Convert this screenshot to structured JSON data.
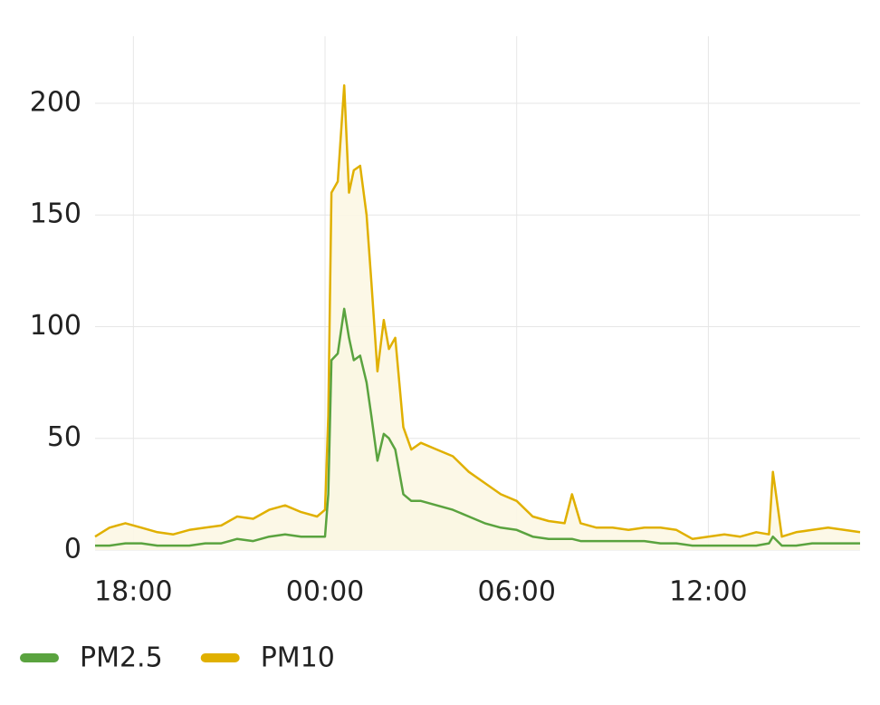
{
  "chart_data": {
    "type": "line",
    "x": [
      16.8,
      17.25,
      17.75,
      18.25,
      18.75,
      19.25,
      19.75,
      20.25,
      20.75,
      21.25,
      21.75,
      22.25,
      22.75,
      23.25,
      23.75,
      24.0,
      24.1,
      24.2,
      24.4,
      24.6,
      24.75,
      24.9,
      25.1,
      25.3,
      25.45,
      25.64,
      25.84,
      26.0,
      26.2,
      26.45,
      26.7,
      27.0,
      27.5,
      28.0,
      28.5,
      29.0,
      29.5,
      30.0,
      30.5,
      31.0,
      31.5,
      31.73,
      32.0,
      32.5,
      33.0,
      33.5,
      34.0,
      34.5,
      35.0,
      35.5,
      36.0,
      36.5,
      37.0,
      37.5,
      37.9,
      38.02,
      38.3,
      38.75,
      39.25,
      39.75,
      40.25,
      40.75
    ],
    "xlim": [
      16.8,
      40.75
    ],
    "xticks": [
      {
        "value": 18,
        "label": "18:00"
      },
      {
        "value": 24,
        "label": "00:00"
      },
      {
        "value": 30,
        "label": "06:00"
      },
      {
        "value": 36,
        "label": "12:00"
      }
    ],
    "ylim": [
      0,
      230
    ],
    "yticks": [
      0,
      50,
      100,
      150,
      200
    ],
    "grid": true,
    "legend": "bottom-left",
    "series": [
      {
        "name": "PM2.5",
        "color": "#5aa33f",
        "fill": "#ebf0d8",
        "values": [
          2,
          2,
          3,
          3,
          2,
          2,
          2,
          3,
          3,
          5,
          4,
          6,
          7,
          6,
          6,
          6,
          25,
          85,
          88,
          108,
          95,
          85,
          87,
          75,
          60,
          40,
          52,
          50,
          45,
          25,
          22,
          22,
          20,
          18,
          15,
          12,
          10,
          9,
          6,
          5,
          5,
          5,
          4,
          4,
          4,
          4,
          4,
          3,
          3,
          2,
          2,
          2,
          2,
          2,
          3,
          6,
          2,
          2,
          3,
          3,
          3,
          3
        ]
      },
      {
        "name": "PM10",
        "color": "#e0b000",
        "fill": "#fcf7e4",
        "values": [
          6,
          10,
          12,
          10,
          8,
          7,
          9,
          10,
          11,
          15,
          14,
          18,
          20,
          17,
          15,
          18,
          60,
          160,
          165,
          208,
          160,
          170,
          172,
          150,
          120,
          80,
          103,
          90,
          95,
          55,
          45,
          48,
          45,
          42,
          35,
          30,
          25,
          22,
          15,
          13,
          12,
          25,
          12,
          10,
          10,
          9,
          10,
          10,
          9,
          5,
          6,
          7,
          6,
          8,
          7,
          35,
          6,
          8,
          9,
          10,
          9,
          8
        ]
      }
    ]
  }
}
